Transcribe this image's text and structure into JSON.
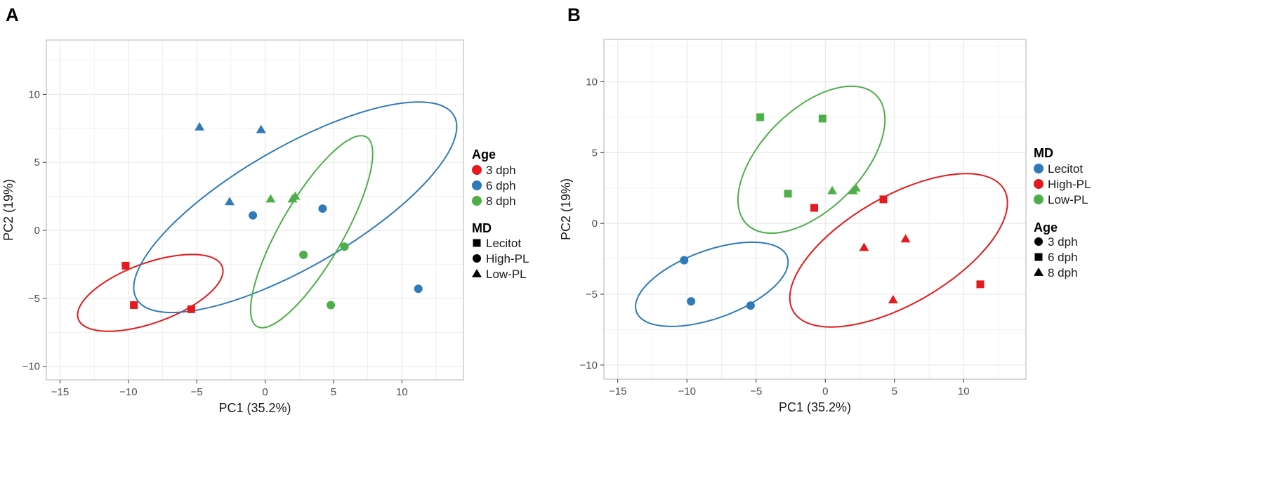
{
  "figure": {
    "colors": {
      "red": "#e41a1c",
      "blue": "#2f7ab9",
      "green": "#4daf4a",
      "grid": "#ebebeb",
      "border": "#b3b3b3"
    }
  },
  "chart_data": [
    {
      "panel": "A",
      "type": "scatter",
      "xlabel": "PC1 (35.2%)",
      "ylabel": "PC2 (19%)",
      "xlim": [
        -16,
        14.5
      ],
      "ylim": [
        -11,
        14
      ],
      "xticks": [
        -15,
        -10,
        -5,
        0,
        5,
        10
      ],
      "yticks": [
        -10,
        -5,
        0,
        5,
        10
      ],
      "xtick_labels": [
        "−15",
        "−10",
        "−5",
        "0",
        "5",
        "10"
      ],
      "ytick_labels": [
        "−10",
        "−5",
        "0",
        "5",
        "10"
      ],
      "color_by": "Age",
      "shape_by": "MD",
      "legend": {
        "color_title": "Age",
        "color_items": [
          {
            "label": "3 dph",
            "color": "#e41a1c"
          },
          {
            "label": "6 dph",
            "color": "#2f7ab9"
          },
          {
            "label": "8 dph",
            "color": "#4daf4a"
          }
        ],
        "shape_title": "MD",
        "shape_items": [
          {
            "label": "Lecitot",
            "shape": "square"
          },
          {
            "label": "High-PL",
            "shape": "circle"
          },
          {
            "label": "Low-PL",
            "shape": "triangle"
          }
        ],
        "order": [
          "color",
          "shape"
        ]
      },
      "points": [
        {
          "x": -10.2,
          "y": -2.6,
          "color": "#e41a1c",
          "shape": "square"
        },
        {
          "x": -9.6,
          "y": -5.5,
          "color": "#e41a1c",
          "shape": "square"
        },
        {
          "x": -5.4,
          "y": -5.8,
          "color": "#e41a1c",
          "shape": "square"
        },
        {
          "x": -4.8,
          "y": 7.6,
          "color": "#2f7ab9",
          "shape": "triangle"
        },
        {
          "x": -0.3,
          "y": 7.4,
          "color": "#2f7ab9",
          "shape": "triangle"
        },
        {
          "x": -2.6,
          "y": 2.1,
          "color": "#2f7ab9",
          "shape": "triangle"
        },
        {
          "x": -0.9,
          "y": 1.1,
          "color": "#2f7ab9",
          "shape": "circle"
        },
        {
          "x": 4.2,
          "y": 1.6,
          "color": "#2f7ab9",
          "shape": "circle"
        },
        {
          "x": 11.2,
          "y": -4.3,
          "color": "#2f7ab9",
          "shape": "circle"
        },
        {
          "x": 0.4,
          "y": 2.3,
          "color": "#4daf4a",
          "shape": "triangle"
        },
        {
          "x": 2.0,
          "y": 2.3,
          "color": "#4daf4a",
          "shape": "triangle"
        },
        {
          "x": 2.2,
          "y": 2.5,
          "color": "#4daf4a",
          "shape": "triangle"
        },
        {
          "x": 2.8,
          "y": -1.8,
          "color": "#4daf4a",
          "shape": "circle"
        },
        {
          "x": 5.8,
          "y": -1.2,
          "color": "#4daf4a",
          "shape": "circle"
        },
        {
          "x": 4.8,
          "y": -5.5,
          "color": "#4daf4a",
          "shape": "circle"
        }
      ],
      "ellipses": [
        {
          "group": "3 dph",
          "color": "#e41a1c",
          "cx": -8.4,
          "cy": -4.6,
          "rx": 5.6,
          "ry": 2.2,
          "angle": -20
        },
        {
          "group": "6 dph",
          "color": "#2f7ab9",
          "cx": 2.2,
          "cy": 1.7,
          "rx": 13.4,
          "ry": 4.4,
          "angle": -30
        },
        {
          "group": "8 dph",
          "color": "#4daf4a",
          "cx": 3.4,
          "cy": -0.1,
          "rx": 8.0,
          "ry": 2.3,
          "angle": -60
        }
      ]
    },
    {
      "panel": "B",
      "type": "scatter",
      "xlabel": "PC1 (35.2%)",
      "ylabel": "PC2 (19%)",
      "xlim": [
        -16,
        14.5
      ],
      "ylim": [
        -11,
        13
      ],
      "xticks": [
        -15,
        -10,
        -5,
        0,
        5,
        10
      ],
      "yticks": [
        -10,
        -5,
        0,
        5,
        10
      ],
      "xtick_labels": [
        "−15",
        "−10",
        "−5",
        "0",
        "5",
        "10"
      ],
      "ytick_labels": [
        "−10",
        "−5",
        "0",
        "5",
        "10"
      ],
      "color_by": "MD",
      "shape_by": "Age",
      "legend": {
        "color_title": "MD",
        "color_items": [
          {
            "label": "Lecitot",
            "color": "#2f7ab9"
          },
          {
            "label": "High-PL",
            "color": "#e41a1c"
          },
          {
            "label": "Low-PL",
            "color": "#4daf4a"
          }
        ],
        "shape_title": "Age",
        "shape_items": [
          {
            "label": "3 dph",
            "shape": "circle"
          },
          {
            "label": "6 dph",
            "shape": "square"
          },
          {
            "label": "8 dph",
            "shape": "triangle"
          }
        ],
        "order": [
          "color",
          "shape"
        ]
      },
      "points": [
        {
          "x": -10.2,
          "y": -2.6,
          "color": "#2f7ab9",
          "shape": "circle"
        },
        {
          "x": -9.7,
          "y": -5.5,
          "color": "#2f7ab9",
          "shape": "circle"
        },
        {
          "x": -5.4,
          "y": -5.8,
          "color": "#2f7ab9",
          "shape": "circle"
        },
        {
          "x": -4.7,
          "y": 7.5,
          "color": "#4daf4a",
          "shape": "square"
        },
        {
          "x": -0.2,
          "y": 7.4,
          "color": "#4daf4a",
          "shape": "square"
        },
        {
          "x": -2.7,
          "y": 2.1,
          "color": "#4daf4a",
          "shape": "square"
        },
        {
          "x": 0.5,
          "y": 2.3,
          "color": "#4daf4a",
          "shape": "triangle"
        },
        {
          "x": 2.0,
          "y": 2.3,
          "color": "#4daf4a",
          "shape": "triangle"
        },
        {
          "x": 2.2,
          "y": 2.5,
          "color": "#4daf4a",
          "shape": "triangle"
        },
        {
          "x": -0.8,
          "y": 1.1,
          "color": "#e41a1c",
          "shape": "square"
        },
        {
          "x": 4.2,
          "y": 1.7,
          "color": "#e41a1c",
          "shape": "square"
        },
        {
          "x": 11.2,
          "y": -4.3,
          "color": "#e41a1c",
          "shape": "square"
        },
        {
          "x": 2.8,
          "y": -1.7,
          "color": "#e41a1c",
          "shape": "triangle"
        },
        {
          "x": 5.8,
          "y": -1.1,
          "color": "#e41a1c",
          "shape": "triangle"
        },
        {
          "x": 4.9,
          "y": -5.4,
          "color": "#e41a1c",
          "shape": "triangle"
        }
      ],
      "ellipses": [
        {
          "group": "Lecitot",
          "color": "#2f7ab9",
          "cx": -8.2,
          "cy": -4.3,
          "rx": 5.8,
          "ry": 2.4,
          "angle": -20
        },
        {
          "group": "High-PL",
          "color": "#e41a1c",
          "cx": 5.3,
          "cy": -1.9,
          "rx": 8.8,
          "ry": 3.8,
          "angle": -30
        },
        {
          "group": "Low-PL",
          "color": "#4daf4a",
          "cx": -1.0,
          "cy": 4.5,
          "rx": 6.6,
          "ry": 3.5,
          "angle": -45
        }
      ]
    }
  ]
}
